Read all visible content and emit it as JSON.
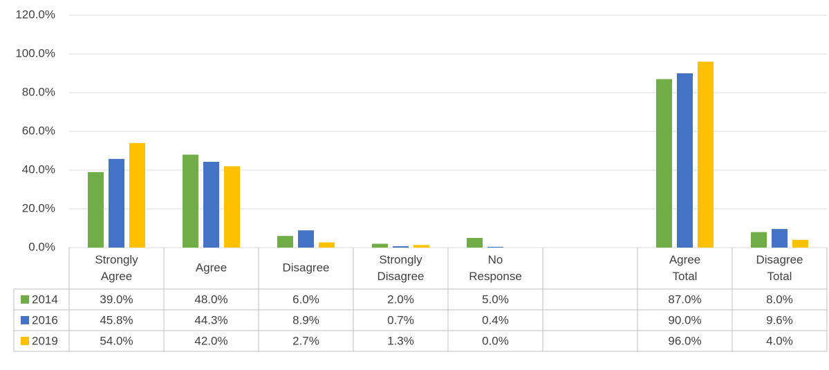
{
  "chart_data": {
    "type": "bar",
    "categories": [
      "Strongly Agree",
      "Agree",
      "Disagree",
      "Strongly Disagree",
      "No Response",
      null,
      "Agree Total",
      "Disagree Total"
    ],
    "series": [
      {
        "name": "2014",
        "color": "#70ad47",
        "values": [
          39.0,
          48.0,
          6.0,
          2.0,
          5.0,
          null,
          87.0,
          8.0
        ],
        "value_labels": [
          "39.0%",
          "48.0%",
          "6.0%",
          "2.0%",
          "5.0%",
          null,
          "87.0%",
          "8.0%"
        ]
      },
      {
        "name": "2016",
        "color": "#4472c4",
        "values": [
          45.8,
          44.3,
          8.9,
          0.7,
          0.4,
          null,
          90.0,
          9.6
        ],
        "value_labels": [
          "45.8%",
          "44.3%",
          "8.9%",
          "0.7%",
          "0.4%",
          null,
          "90.0%",
          "9.6%"
        ]
      },
      {
        "name": "2019",
        "color": "#ffc000",
        "values": [
          54.0,
          42.0,
          2.7,
          1.3,
          0.0,
          null,
          96.0,
          4.0
        ],
        "value_labels": [
          "54.0%",
          "42.0%",
          "2.7%",
          "1.3%",
          "0.0%",
          null,
          "96.0%",
          "4.0%"
        ]
      }
    ],
    "ylim": [
      0,
      120
    ],
    "yticks": [
      {
        "value": 0,
        "label": "0.0%"
      },
      {
        "value": 20,
        "label": "20.0%"
      },
      {
        "value": 40,
        "label": "40.0%"
      },
      {
        "value": 60,
        "label": "60.0%"
      },
      {
        "value": 80,
        "label": "80.0%"
      },
      {
        "value": 100,
        "label": "100.0%"
      },
      {
        "value": 120,
        "label": "120.0%"
      }
    ],
    "grid": true,
    "legend": "data-table"
  }
}
